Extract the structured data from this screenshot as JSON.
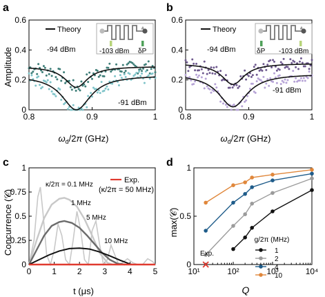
{
  "colors": {
    "teal_light": "#7fc4c9",
    "teal_dark": "#3f7f79",
    "purple_light": "#b6a3d6",
    "purple_dark": "#6f5a8f",
    "gray_light": "#c8c8c8",
    "gray_mid": "#9b9b9b",
    "gray_dark": "#6b6b6b",
    "black": "#111111",
    "red": "#e03a2f",
    "blue": "#1f5c8a",
    "orange": "#e0873b"
  },
  "panels": {
    "a": {
      "label": "a"
    },
    "b": {
      "label": "b"
    },
    "c": {
      "label": "c"
    },
    "d": {
      "label": "d"
    }
  },
  "chart_data": [
    {
      "type": "scatter",
      "panel": "a",
      "xlabel": "ω_d/2π (GHz)",
      "ylabel": "Amplitude",
      "xlim": [
        0.8,
        1.0
      ],
      "ylim": [
        0,
        0.6
      ],
      "xticks": [
        "0.8",
        "0.9",
        "1"
      ],
      "yticks": [
        "0",
        "0.2",
        "0.4",
        "0.6"
      ],
      "legend": {
        "label": "Theory",
        "position": "top-center"
      },
      "annotations": [
        "-94 dBm",
        "-91 dBm"
      ],
      "inset": {
        "left_label": "-103 dBm",
        "right_label": "δP"
      },
      "series": [
        {
          "name": "-94 dBm",
          "color": "teal_dark",
          "baseline": 0.29,
          "dip_center": 0.875,
          "dip_width": 0.022,
          "dip_min": 0.15
        },
        {
          "name": "-91 dBm",
          "color": "teal_light",
          "baseline": 0.23,
          "dip_center": 0.875,
          "dip_width": 0.028,
          "dip_min": 0.0
        }
      ]
    },
    {
      "type": "scatter",
      "panel": "b",
      "xlabel": "ω_d/2π (GHz)",
      "ylabel": "",
      "xlim": [
        0.8,
        1.0
      ],
      "ylim": [
        0,
        0.6
      ],
      "xticks": [
        "0.8",
        "0.9",
        "1"
      ],
      "yticks": [
        "0",
        "0.2",
        "0.4",
        "0.6"
      ],
      "legend": {
        "label": "Theory",
        "position": "top-center"
      },
      "annotations": [
        "-94 dBm",
        "-91 dBm"
      ],
      "inset": {
        "left_label": "δP",
        "right_label": "-103 dBm"
      },
      "series": [
        {
          "name": "-94 dBm",
          "color": "purple_dark",
          "baseline": 0.31,
          "dip_center": 0.875,
          "dip_width": 0.022,
          "dip_min": 0.17
        },
        {
          "name": "-91 dBm",
          "color": "purple_light",
          "baseline": 0.24,
          "dip_center": 0.875,
          "dip_width": 0.028,
          "dip_min": 0.02
        }
      ]
    },
    {
      "type": "line",
      "panel": "c",
      "xlabel": "t (μs)",
      "ylabel": "Concurrence (𝒞)",
      "xlim": [
        0,
        5
      ],
      "ylim": [
        0,
        1.0
      ],
      "xticks": [
        "0",
        "1",
        "2",
        "3",
        "4",
        "5"
      ],
      "yticks": [
        "0",
        "0.25",
        "0.5",
        "0.75",
        "1"
      ],
      "legend": {
        "label": "Exp.",
        "sublabel": "(κ/2π = 50 MHz)",
        "position": "top-right"
      },
      "series": [
        {
          "name": "κ/2π = 0.1 MHz",
          "color": "gray_light",
          "x": [
            0,
            0.2,
            0.35,
            0.45,
            0.55,
            0.7,
            0.85,
            1.0,
            1.15,
            1.3,
            1.45,
            1.6,
            1.75,
            1.9,
            2.05,
            2.2,
            2.35,
            2.5,
            2.65,
            2.8,
            2.95,
            3.1,
            3.25,
            3.4,
            3.55,
            3.7,
            3.9,
            4.1,
            4.3,
            4.5,
            4.7,
            4.9,
            5.0
          ],
          "y": [
            0,
            0.25,
            0.7,
            0.8,
            0.55,
            0.1,
            0.0,
            0.15,
            0.42,
            0.3,
            0.05,
            0.0,
            0.25,
            0.55,
            0.35,
            0.05,
            0.0,
            0.35,
            0.45,
            0.2,
            0.0,
            0.05,
            0.2,
            0.1,
            0.0,
            0.02,
            0.06,
            0.02,
            0.0,
            0.0,
            0.06,
            0.03,
            0.0
          ]
        },
        {
          "name": "1 MHz",
          "color": "gray_light",
          "x": [
            0,
            0.3,
            0.6,
            0.9,
            1.2,
            1.4,
            1.6,
            1.9,
            2.2,
            2.5,
            2.8,
            3.1,
            3.3
          ],
          "y": [
            0,
            0.25,
            0.48,
            0.62,
            0.68,
            0.69,
            0.67,
            0.6,
            0.47,
            0.3,
            0.12,
            0.02,
            0.0
          ]
        },
        {
          "name": "5 MHz",
          "color": "gray_dark",
          "x": [
            0,
            0.3,
            0.6,
            0.9,
            1.2,
            1.4,
            1.7,
            2.0,
            2.3,
            2.6,
            2.9,
            3.2,
            3.5,
            3.8
          ],
          "y": [
            0,
            0.15,
            0.3,
            0.4,
            0.44,
            0.45,
            0.43,
            0.38,
            0.3,
            0.21,
            0.12,
            0.05,
            0.01,
            0.0
          ]
        },
        {
          "name": "10 MHz",
          "color": "black",
          "x": [
            0,
            0.4,
            0.8,
            1.2,
            1.6,
            2.0,
            2.4,
            2.8,
            3.2,
            3.6,
            4.0,
            4.1
          ],
          "y": [
            0,
            0.05,
            0.1,
            0.14,
            0.165,
            0.17,
            0.16,
            0.13,
            0.09,
            0.045,
            0.005,
            0.0
          ]
        },
        {
          "name": "Exp.",
          "color": "red",
          "x": [
            0,
            5
          ],
          "y": [
            0,
            0
          ]
        }
      ]
    },
    {
      "type": "line",
      "panel": "d",
      "xlabel": "Q",
      "ylabel": "max(𝒞)",
      "xscale": "log",
      "xlim": [
        10,
        10000
      ],
      "ylim": [
        0,
        1.0
      ],
      "xticks": [
        "10¹",
        "10²",
        "10³",
        "10⁴"
      ],
      "yticks": [
        "0",
        "0.5",
        "1"
      ],
      "legend": {
        "title": "g/2π (MHz)",
        "position": "center-right"
      },
      "annotations": [
        "Exp."
      ],
      "series": [
        {
          "name": "1",
          "color": "black",
          "x": [
            100,
            200,
            300,
            1000,
            10000
          ],
          "y": [
            0.16,
            0.28,
            0.38,
            0.55,
            0.77
          ]
        },
        {
          "name": "2",
          "color": "gray_mid",
          "x": [
            20,
            100,
            200,
            300,
            1000,
            10000
          ],
          "y": [
            0.1,
            0.4,
            0.52,
            0.63,
            0.74,
            0.89
          ]
        },
        {
          "name": "4",
          "color": "blue",
          "x": [
            20,
            100,
            200,
            300,
            1000,
            10000
          ],
          "y": [
            0.35,
            0.64,
            0.73,
            0.8,
            0.87,
            0.94
          ]
        },
        {
          "name": "10",
          "color": "orange",
          "x": [
            20,
            100,
            200,
            300,
            1000,
            10000
          ],
          "y": [
            0.64,
            0.82,
            0.85,
            0.9,
            0.93,
            0.98
          ]
        },
        {
          "name": "Exp.",
          "color": "red",
          "x": [
            20
          ],
          "y": [
            0
          ],
          "marker": "x"
        }
      ]
    }
  ]
}
